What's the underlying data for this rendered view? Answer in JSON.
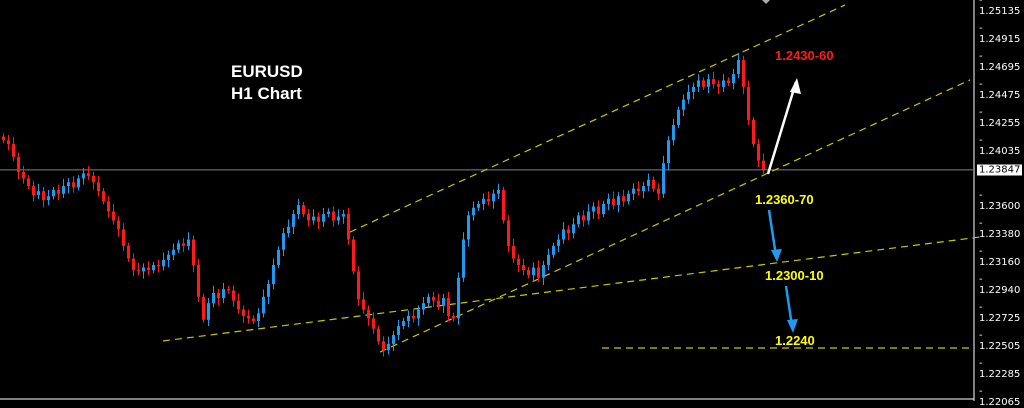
{
  "chart_data": {
    "type": "candlestick",
    "title": "EURUSD",
    "subtitle": "H1 Chart",
    "symbol": "EURUSD",
    "timeframe": "H1",
    "ylim": [
      1.21995,
      1.25185
    ],
    "y_ticks": [
      "1.25135",
      "1.24915",
      "1.24695",
      "1.24475",
      "1.24255",
      "1.24035",
      "1.23600",
      "1.23380",
      "1.23160",
      "1.22940",
      "1.22725",
      "1.22505",
      "1.22285",
      "1.22065"
    ],
    "current_price": "1.23847",
    "grid": false,
    "colors": {
      "background": "#000000",
      "bull": "#1e9bf0",
      "bear": "#ff1a1a",
      "trendline": "#c8c800",
      "current_line": "#808080",
      "axis_text": "#ffffff"
    },
    "closes": [
      1.2408,
      1.2405,
      1.2395,
      1.2383,
      1.2378,
      1.2372,
      1.2365,
      1.2368,
      1.2361,
      1.2364,
      1.2369,
      1.2366,
      1.2372,
      1.2375,
      1.2371,
      1.2378,
      1.2382,
      1.238,
      1.2375,
      1.2368,
      1.236,
      1.2352,
      1.2345,
      1.2338,
      1.2325,
      1.2315,
      1.2306,
      1.2305,
      1.2308,
      1.2306,
      1.231,
      1.2309,
      1.2314,
      1.2318,
      1.2322,
      1.2327,
      1.2325,
      1.233,
      1.231,
      1.2285,
      1.2267,
      1.228,
      1.2288,
      1.2284,
      1.2291,
      1.229,
      1.2282,
      1.2275,
      1.227,
      1.2268,
      1.2266,
      1.2272,
      1.2285,
      1.2295,
      1.231,
      1.2322,
      1.2335,
      1.234,
      1.235,
      1.2357,
      1.235,
      1.2345,
      1.2348,
      1.2344,
      1.235,
      1.2352,
      1.2345,
      1.2348,
      1.235,
      1.233,
      1.2305,
      1.2283,
      1.2275,
      1.2268,
      1.226,
      1.225,
      1.2243,
      1.2248,
      1.2255,
      1.2262,
      1.2266,
      1.227,
      1.2268,
      1.2275,
      1.228,
      1.2285,
      1.2282,
      1.2278,
      1.2284,
      1.227,
      1.2268,
      1.23,
      1.233,
      1.2349,
      1.2355,
      1.2358,
      1.2362,
      1.236,
      1.2366,
      1.2369,
      1.2345,
      1.2325,
      1.2315,
      1.231,
      1.2306,
      1.2302,
      1.2308,
      1.23,
      1.231,
      1.2318,
      1.2325,
      1.233,
      1.2338,
      1.2335,
      1.2342,
      1.2349,
      1.2345,
      1.2352,
      1.2356,
      1.235,
      1.2358,
      1.2362,
      1.2357,
      1.2364,
      1.236,
      1.2366,
      1.237,
      1.2368,
      1.2372,
      1.2377,
      1.237,
      1.2366,
      1.239,
      1.2408,
      1.242,
      1.2432,
      1.244,
      1.2446,
      1.245,
      1.2455,
      1.245,
      1.2456,
      1.2452,
      1.245,
      1.2455,
      1.2453,
      1.246,
      1.2471,
      1.245,
      1.2424,
      1.2405,
      1.2392,
      1.2385
    ],
    "trendlines": [
      {
        "name": "upper-channel",
        "points": [
          [
            69.6,
            1.23359
          ],
          [
            168.6,
            1.25143
          ]
        ]
      },
      {
        "name": "middle-channel",
        "points": [
          [
            75.6,
            1.22416
          ],
          [
            193.6,
            1.24554
          ]
        ]
      },
      {
        "name": "lower-support",
        "points": [
          [
            32.2,
            1.22503
          ],
          [
            195.6,
            1.2332
          ]
        ]
      },
      {
        "name": "target-1.2240",
        "points": [
          [
            120,
            1.22448
          ],
          [
            193.6,
            1.22448
          ]
        ]
      }
    ],
    "annotations": [
      {
        "text": "1.2430-60",
        "color": "#ff1a1a"
      },
      {
        "text": "1.2360-70",
        "color": "#ffff00"
      },
      {
        "text": "1.2300-10",
        "color": "#ffff00"
      },
      {
        "text": "1.2240",
        "color": "#ffff00"
      }
    ]
  }
}
